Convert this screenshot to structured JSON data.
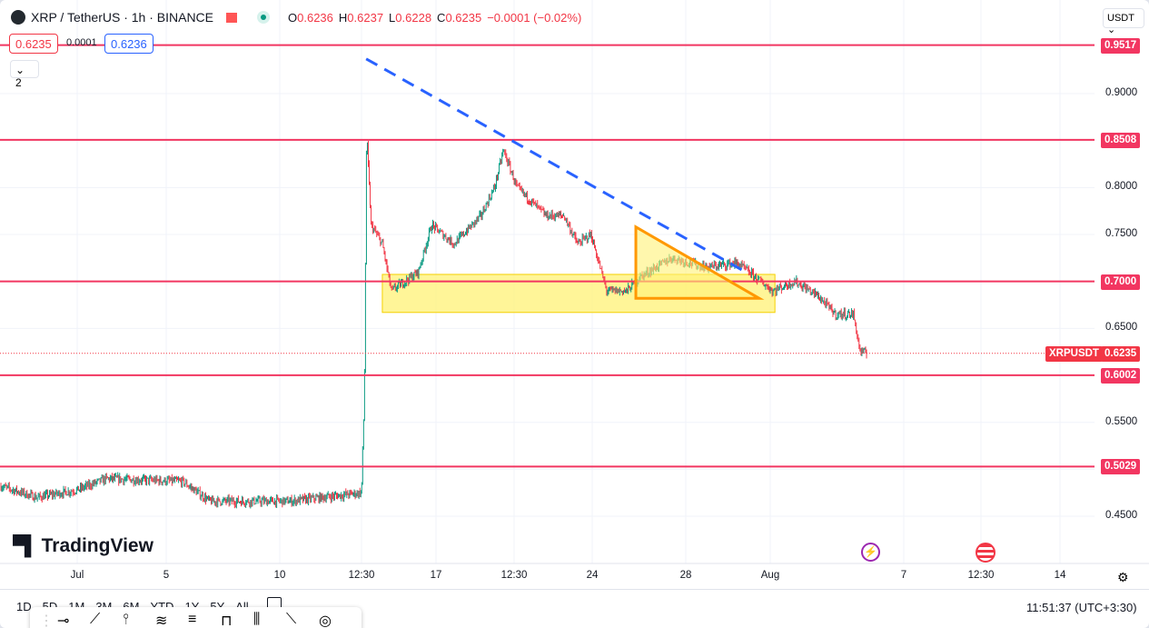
{
  "header": {
    "symbol": "XRP / TetherUS · 1h · BINANCE",
    "ohlc": {
      "o_label": "O",
      "o": "0.6236",
      "h_label": "H",
      "h": "0.6237",
      "l_label": "L",
      "l": "0.6228",
      "c_label": "C",
      "c": "0.6235",
      "change": "−0.0001 (−0.02%)"
    },
    "sell_price": "0.6235",
    "spread": "0.0001",
    "buy_price": "0.6236",
    "indicators_toggle": "2",
    "currency": "USDT"
  },
  "colors": {
    "up": "#089981",
    "down": "#f23645",
    "level": "#f23661",
    "trend": "#2962ff",
    "zone": "#fff176",
    "triangle": "#ff9800"
  },
  "price_axis": {
    "ticks": [
      "0.9000",
      "0.8000",
      "0.7500",
      "0.6500",
      "0.5500",
      "0.4500"
    ],
    "levels": [
      "0.9517",
      "0.8508",
      "0.7000",
      "0.6002",
      "0.5029"
    ],
    "symbol_label": "XRPUSDT",
    "current": "0.6235"
  },
  "time_axis": {
    "ticks": [
      "Jul",
      "5",
      "10",
      "12:30",
      "17",
      "12:30",
      "24",
      "28",
      "Aug",
      "7",
      "12:30",
      "14"
    ]
  },
  "logo": "TradingView",
  "ranges": [
    "1D",
    "5D",
    "1M",
    "3M",
    "6M",
    "YTD",
    "1Y",
    "5Y",
    "All"
  ],
  "clock": "11:51:37 (UTC+3:30)",
  "chart_data": {
    "type": "candlestick",
    "interval": "1h",
    "x_unit": "days since Jul 1",
    "path": [
      [
        -3.4,
        0.482
      ],
      [
        -1.8,
        0.47
      ],
      [
        0,
        0.478
      ],
      [
        1.3,
        0.49
      ],
      [
        4.7,
        0.487
      ],
      [
        5.9,
        0.466
      ],
      [
        9.5,
        0.466
      ],
      [
        12.67,
        0.475
      ],
      [
        12.8,
        0.58
      ],
      [
        12.9,
        0.86
      ],
      [
        13.1,
        0.76
      ],
      [
        13.6,
        0.74
      ],
      [
        14,
        0.69
      ],
      [
        15.2,
        0.71
      ],
      [
        15.8,
        0.76
      ],
      [
        16.8,
        0.74
      ],
      [
        18,
        0.77
      ],
      [
        18.6,
        0.8
      ],
      [
        19,
        0.84
      ],
      [
        19.6,
        0.8
      ],
      [
        20.9,
        0.77
      ],
      [
        21.7,
        0.77
      ],
      [
        22.3,
        0.74
      ],
      [
        22.9,
        0.75
      ],
      [
        23.6,
        0.69
      ],
      [
        24.5,
        0.69
      ],
      [
        25.1,
        0.705
      ],
      [
        26.5,
        0.725
      ],
      [
        28.1,
        0.715
      ],
      [
        29.4,
        0.72
      ],
      [
        30.2,
        0.705
      ],
      [
        31,
        0.69
      ],
      [
        32,
        0.7
      ],
      [
        33,
        0.685
      ],
      [
        33.8,
        0.665
      ],
      [
        34.6,
        0.665
      ],
      [
        34.9,
        0.625
      ],
      [
        35.2,
        0.6235
      ]
    ],
    "levels": [
      0.9517,
      0.8508,
      0.7,
      0.6002,
      0.5029
    ],
    "current": 0.6235,
    "trendline": [
      [
        12.88,
        0.937
      ],
      [
        29.8,
        0.71
      ]
    ],
    "zone": {
      "from": 13.6,
      "to": 31.1,
      "top": 0.7075,
      "bottom": 0.667
    },
    "triangle": [
      [
        24.9,
        0.758
      ],
      [
        24.9,
        0.682
      ],
      [
        30.4,
        0.682
      ]
    ],
    "ylim": [
      0.41,
      0.99
    ]
  }
}
